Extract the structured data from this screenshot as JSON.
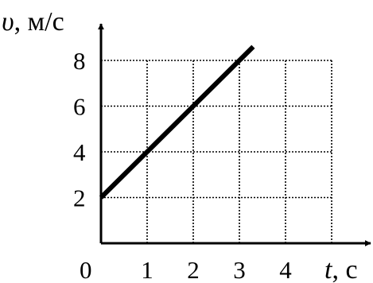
{
  "chart_data": {
    "type": "line",
    "title": "",
    "xlabel": {
      "var": "t",
      "unit": ", с"
    },
    "ylabel": {
      "var": "υ",
      "unit": ", м/с"
    },
    "origin_label": "0",
    "x_ticks": [
      1,
      2,
      3,
      4
    ],
    "y_ticks": [
      2,
      4,
      6,
      8
    ],
    "x_tick_labels": [
      "1",
      "2",
      "3",
      "4"
    ],
    "y_tick_labels": [
      "2",
      "4",
      "6",
      "8"
    ],
    "xlim": [
      0,
      5.6
    ],
    "ylim": [
      0,
      9.5
    ],
    "grid": true,
    "grid_style": "dotted",
    "series": [
      {
        "x": [
          0,
          3.3
        ],
        "y": [
          2,
          8.6
        ]
      }
    ]
  },
  "colors": {
    "axis": "#000000",
    "line": "#000000",
    "grid": "#000000"
  }
}
